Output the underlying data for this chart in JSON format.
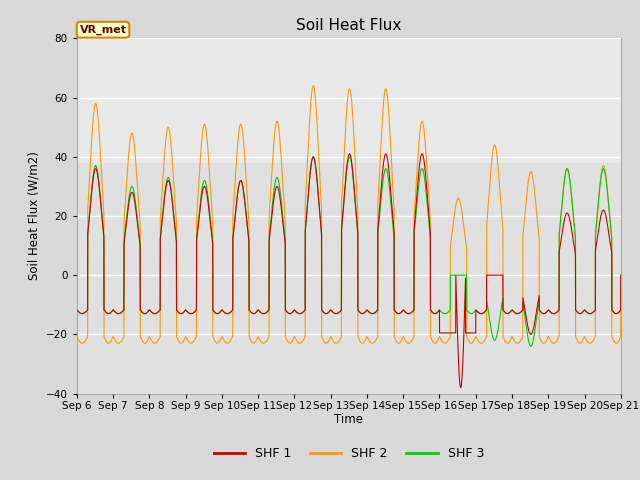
{
  "title": "Soil Heat Flux",
  "ylabel": "Soil Heat Flux (W/m2)",
  "xlabel": "Time",
  "ylim": [
    -40,
    80
  ],
  "yticks": [
    -40,
    -20,
    0,
    20,
    40,
    60,
    80
  ],
  "xtick_labels": [
    "Sep 6",
    "Sep 7",
    "Sep 8",
    "Sep 9",
    "Sep 10",
    "Sep 11",
    "Sep 12",
    "Sep 13",
    "Sep 14",
    "Sep 15",
    "Sep 16",
    "Sep 17",
    "Sep 18",
    "Sep 19",
    "Sep 20",
    "Sep 21"
  ],
  "colors": {
    "SHF 1": "#cc0000",
    "SHF 2": "#ff9900",
    "SHF 3": "#00cc00"
  },
  "fig_bg": "#d8d8d8",
  "plot_bg": "#ebebeb",
  "legend_label": "VR_met",
  "legend_box_edge": "#cc8800",
  "legend_box_face": "#ffffcc",
  "legend_text_color": "#660000",
  "n_days": 15,
  "shf2_day_amps": [
    58,
    48,
    50,
    51,
    51,
    52,
    64,
    63,
    63,
    52,
    26,
    44,
    35,
    36,
    37
  ],
  "shf2_night": -23,
  "shf1_day_amps": [
    36,
    28,
    32,
    30,
    32,
    30,
    40,
    41,
    41,
    41,
    -38,
    0,
    -20,
    21,
    22
  ],
  "shf1_night": -13,
  "shf3_day_amps": [
    37,
    30,
    33,
    32,
    32,
    33,
    40,
    40,
    36,
    36,
    0,
    -22,
    -24,
    36,
    36
  ],
  "shf3_night": -13
}
